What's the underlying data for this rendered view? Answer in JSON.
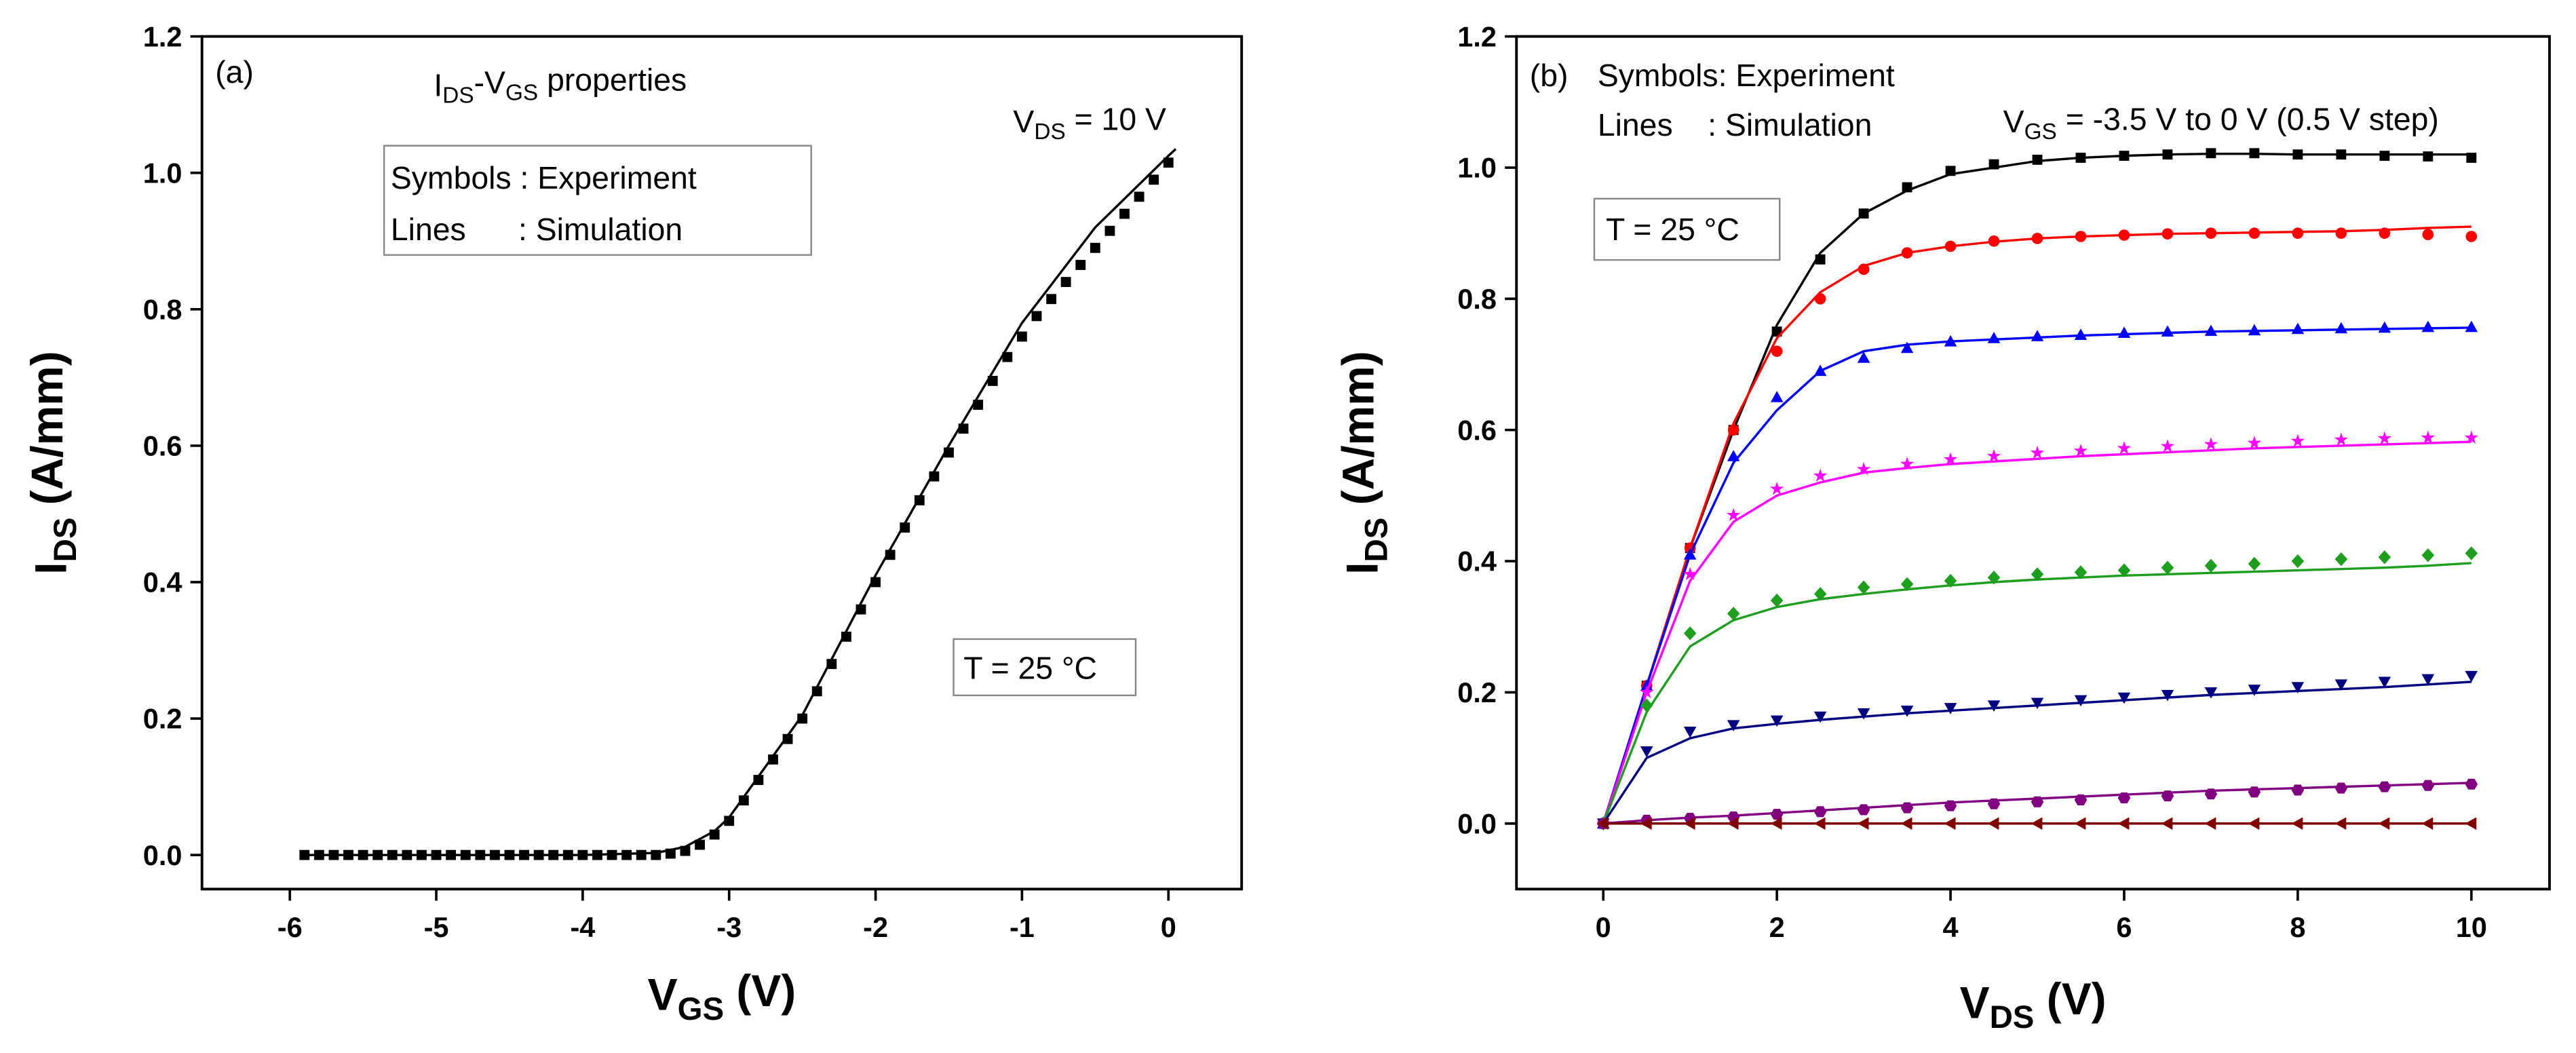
{
  "chart_data": [
    {
      "type": "scatter",
      "xlabel": [
        "V",
        "GS",
        " (V)"
      ],
      "ylabel": [
        "I",
        "DS",
        " (A/mm)"
      ],
      "annotations": [
        "(a)",
        [
          "I",
          "DS",
          "-V",
          "GS",
          " properties"
        ],
        [
          "V",
          "DS",
          " = 10 V"
        ],
        "Symbols : Experiment",
        "Lines      : Simulation",
        "T = 25 °C"
      ],
      "xlim": [
        -6.6,
        0.5
      ],
      "xticks": [
        -6,
        -5,
        -4,
        -3,
        -2,
        -1,
        0
      ],
      "ylim": [
        -0.05,
        1.2
      ],
      "yticks": [
        {
          "value": 0,
          "label": "0.0"
        },
        {
          "value": 0.2,
          "label": "0.2"
        },
        {
          "value": 0.4,
          "label": "0.4"
        },
        {
          "value": 0.6,
          "label": "0.6"
        },
        {
          "value": 0.8,
          "label": "0.8"
        },
        {
          "value": 1.0,
          "label": "1.0"
        },
        {
          "value": 1.2,
          "label": "1.2"
        }
      ],
      "x": [
        -5.9,
        -5.8,
        -5.7,
        -5.6,
        -5.5,
        -5.4,
        -5.3,
        -5.2,
        -5.1,
        -5,
        -4.9,
        -4.8,
        -4.7,
        -4.6,
        -4.5,
        -4.4,
        -4.3,
        -4.2,
        -4.1,
        -4,
        -3.9,
        -3.8,
        -3.7,
        -3.6,
        -3.5,
        -3.4,
        -3.3,
        -3.2,
        -3.1,
        -3,
        -2.9,
        -2.8,
        -2.7,
        -2.6,
        -2.5,
        -2.4,
        -2.3,
        -2.2,
        -2.1,
        -2,
        -1.9,
        -1.8,
        -1.7,
        -1.6,
        -1.5,
        -1.4,
        -1.3,
        -1.2,
        -1.1,
        -1,
        -0.9,
        -0.8,
        -0.7,
        -0.6,
        -0.5,
        -0.4,
        -0.3,
        -0.2,
        -0.1,
        0
      ],
      "series": [
        {
          "color": "#000000",
          "marker": "square",
          "values": [
            0,
            0,
            0,
            0,
            0,
            0,
            0,
            0,
            0,
            0,
            0,
            0,
            0,
            0,
            0,
            0,
            0,
            0,
            0,
            0,
            0,
            0,
            0,
            0,
            0,
            0.002,
            0.006,
            0.015,
            0.03,
            0.05,
            0.08,
            0.11,
            0.14,
            0.17,
            0.2,
            0.24,
            0.28,
            0.32,
            0.36,
            0.4,
            0.44,
            0.48,
            0.52,
            0.555,
            0.59,
            0.625,
            0.66,
            0.695,
            0.73,
            0.76,
            0.79,
            0.815,
            0.84,
            0.865,
            0.89,
            0.915,
            0.94,
            0.965,
            0.99,
            1.015
          ],
          "simulation": {
            "x": [
              -5.9,
              -4,
              -3.5,
              -3.3,
              -3.1,
              -3,
              -2.5,
              -2,
              -1.5,
              -1,
              -0.5,
              0,
              0.05
            ],
            "values": [
              0,
              0,
              0.003,
              0.012,
              0.035,
              0.055,
              0.205,
              0.41,
              0.6,
              0.78,
              0.92,
              1.025,
              1.035
            ]
          }
        }
      ]
    },
    {
      "type": "scatter",
      "xlabel": [
        "V",
        "DS",
        " (V)"
      ],
      "ylabel": [
        "I",
        "DS",
        " (A/mm)"
      ],
      "annotations": [
        "(b)",
        "Symbols: Experiment",
        "Lines    : Simulation",
        [
          "V",
          "GS",
          " = -3.5 V to 0 V (0.5 V step)"
        ],
        "T = 25 °C"
      ],
      "xlim": [
        -1,
        10.9
      ],
      "xticks": [
        0,
        2,
        4,
        6,
        8,
        10
      ],
      "ylim": [
        -0.1,
        1.2
      ],
      "yticks": [
        {
          "value": 0,
          "label": "0.0"
        },
        {
          "value": 0.2,
          "label": "0.2"
        },
        {
          "value": 0.4,
          "label": "0.4"
        },
        {
          "value": 0.6,
          "label": "0.6"
        },
        {
          "value": 0.8,
          "label": "0.8"
        },
        {
          "value": 1.0,
          "label": "1.0"
        },
        {
          "value": 1.2,
          "label": "1.2"
        }
      ],
      "x": [
        0,
        0.5,
        1,
        1.5,
        2,
        2.5,
        3,
        3.5,
        4,
        4.5,
        5,
        5.5,
        6,
        6.5,
        7,
        7.5,
        8,
        8.5,
        9,
        9.5,
        10
      ],
      "series": [
        {
          "color": "#000000",
          "marker": "square",
          "values": [
            0,
            0.21,
            0.42,
            0.6,
            0.75,
            0.86,
            0.93,
            0.97,
            0.995,
            1.005,
            1.012,
            1.015,
            1.018,
            1.02,
            1.022,
            1.022,
            1.02,
            1.02,
            1.018,
            1.017,
            1.015
          ],
          "simulation": {
            "values": [
              0,
              0.21,
              0.42,
              0.6,
              0.76,
              0.87,
              0.93,
              0.965,
              0.99,
              1.0,
              1.01,
              1.015,
              1.018,
              1.02,
              1.021,
              1.021,
              1.02,
              1.02,
              1.02,
              1.02,
              1.02
            ]
          }
        },
        {
          "color": "#ff0000",
          "marker": "circle",
          "values": [
            0,
            0.21,
            0.42,
            0.6,
            0.72,
            0.8,
            0.845,
            0.87,
            0.88,
            0.888,
            0.892,
            0.895,
            0.897,
            0.899,
            0.9,
            0.9,
            0.9,
            0.9,
            0.9,
            0.898,
            0.895
          ],
          "simulation": {
            "values": [
              0,
              0.21,
              0.42,
              0.61,
              0.74,
              0.81,
              0.85,
              0.87,
              0.88,
              0.887,
              0.892,
              0.895,
              0.897,
              0.899,
              0.9,
              0.901,
              0.902,
              0.903,
              0.905,
              0.908,
              0.91
            ]
          }
        },
        {
          "color": "#0000ff",
          "marker": "triangle-up",
          "values": [
            0,
            0.21,
            0.41,
            0.56,
            0.65,
            0.69,
            0.71,
            0.725,
            0.735,
            0.74,
            0.743,
            0.745,
            0.748,
            0.75,
            0.751,
            0.752,
            0.754,
            0.755,
            0.756,
            0.757,
            0.757
          ],
          "simulation": {
            "values": [
              0,
              0.21,
              0.41,
              0.55,
              0.63,
              0.69,
              0.72,
              0.73,
              0.735,
              0.738,
              0.741,
              0.744,
              0.746,
              0.748,
              0.75,
              0.751,
              0.752,
              0.753,
              0.754,
              0.755,
              0.756
            ]
          }
        },
        {
          "color": "#ff00ff",
          "marker": "star",
          "values": [
            0,
            0.2,
            0.38,
            0.47,
            0.51,
            0.53,
            0.54,
            0.548,
            0.555,
            0.56,
            0.565,
            0.568,
            0.572,
            0.575,
            0.578,
            0.58,
            0.583,
            0.585,
            0.587,
            0.588,
            0.588
          ],
          "simulation": {
            "values": [
              0,
              0.2,
              0.37,
              0.46,
              0.5,
              0.52,
              0.535,
              0.542,
              0.548,
              0.552,
              0.556,
              0.56,
              0.563,
              0.566,
              0.569,
              0.572,
              0.574,
              0.576,
              0.578,
              0.58,
              0.582
            ]
          }
        },
        {
          "color": "#1e9e1e",
          "marker": "diamond",
          "values": [
            0,
            0.18,
            0.29,
            0.32,
            0.34,
            0.35,
            0.36,
            0.365,
            0.37,
            0.375,
            0.38,
            0.383,
            0.386,
            0.39,
            0.393,
            0.396,
            0.4,
            0.403,
            0.406,
            0.409,
            0.412
          ],
          "simulation": {
            "values": [
              0,
              0.17,
              0.27,
              0.31,
              0.33,
              0.342,
              0.35,
              0.357,
              0.363,
              0.368,
              0.372,
              0.375,
              0.378,
              0.38,
              0.382,
              0.384,
              0.386,
              0.388,
              0.39,
              0.393,
              0.397
            ]
          }
        },
        {
          "color": "#000080",
          "marker": "triangle-down",
          "values": [
            0,
            0.11,
            0.14,
            0.15,
            0.157,
            0.163,
            0.168,
            0.172,
            0.176,
            0.18,
            0.184,
            0.188,
            0.192,
            0.196,
            0.2,
            0.204,
            0.208,
            0.212,
            0.216,
            0.22,
            0.225
          ],
          "simulation": {
            "values": [
              0,
              0.1,
              0.13,
              0.145,
              0.152,
              0.158,
              0.163,
              0.168,
              0.172,
              0.176,
              0.18,
              0.184,
              0.188,
              0.192,
              0.196,
              0.199,
              0.202,
              0.205,
              0.208,
              0.212,
              0.216
            ]
          }
        },
        {
          "color": "#800080",
          "marker": "hexagon",
          "values": [
            0,
            0.005,
            0.008,
            0.01,
            0.014,
            0.018,
            0.021,
            0.024,
            0.027,
            0.03,
            0.033,
            0.036,
            0.039,
            0.042,
            0.045,
            0.048,
            0.051,
            0.054,
            0.056,
            0.058,
            0.06
          ],
          "simulation": {
            "values": [
              0,
              0.005,
              0.009,
              0.012,
              0.016,
              0.02,
              0.024,
              0.028,
              0.032,
              0.035,
              0.038,
              0.041,
              0.044,
              0.047,
              0.05,
              0.052,
              0.054,
              0.056,
              0.058,
              0.06,
              0.062
            ]
          }
        },
        {
          "color": "#800000",
          "marker": "triangle-left",
          "values": [
            0,
            0,
            0,
            0,
            0,
            0,
            0,
            0,
            0,
            0,
            0,
            0,
            0,
            0,
            0,
            0,
            0,
            0,
            0,
            0,
            0
          ],
          "simulation": {
            "values": [
              0,
              0,
              0,
              0,
              0,
              0,
              0,
              0,
              0,
              0,
              0,
              0,
              0,
              0,
              0,
              0,
              0,
              0,
              0,
              0,
              0
            ]
          }
        }
      ]
    }
  ]
}
